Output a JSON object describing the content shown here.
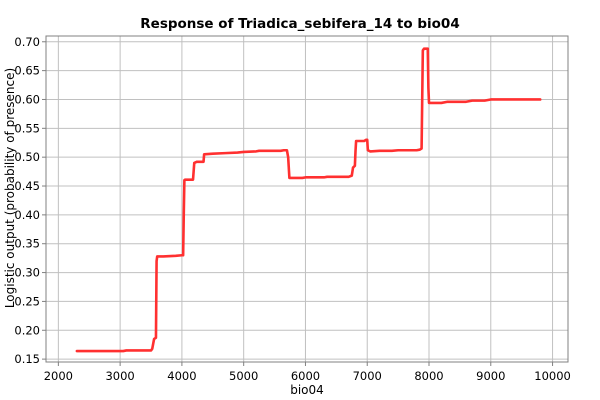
{
  "chart_data": {
    "type": "line",
    "title": "Response of Triadica_sebifera_14 to bio04",
    "xlabel": "bio04",
    "ylabel": "Logistic output (probability of presence)",
    "xlim": [
      1800,
      10250
    ],
    "ylim": [
      0.145,
      0.71
    ],
    "xticks": [
      2000,
      3000,
      4000,
      5000,
      6000,
      7000,
      8000,
      9000,
      10000
    ],
    "xtick_labels": [
      "2000",
      "3000",
      "4000",
      "5000",
      "6000",
      "7000",
      "8000",
      "9000",
      "10000"
    ],
    "yticks": [
      0.15,
      0.2,
      0.25,
      0.3,
      0.35,
      0.4,
      0.45,
      0.5,
      0.55,
      0.6,
      0.65,
      0.7
    ],
    "ytick_labels": [
      "0.15",
      "0.20",
      "0.25",
      "0.30",
      "0.35",
      "0.40",
      "0.45",
      "0.50",
      "0.55",
      "0.60",
      "0.65",
      "0.70"
    ],
    "grid": true,
    "series": [
      {
        "color": "#ff3030",
        "x": [
          2300,
          3050,
          3100,
          3500,
          3520,
          3550,
          3580,
          3590,
          3600,
          3700,
          3900,
          4000,
          4020,
          4030,
          4040,
          4050,
          4180,
          4200,
          4240,
          4350,
          4360,
          4500,
          4700,
          4900,
          5000,
          5200,
          5250,
          5400,
          5600,
          5650,
          5700,
          5720,
          5740,
          5800,
          5950,
          6000,
          6300,
          6350,
          6700,
          6750,
          6770,
          6800,
          6810,
          6820,
          6950,
          6980,
          7000,
          7010,
          7050,
          7200,
          7400,
          7500,
          7800,
          7850,
          7880,
          7890,
          7900,
          7920,
          7980,
          7990,
          8000,
          8200,
          8300,
          8600,
          8700,
          8900,
          9000,
          9800
        ],
        "y": [
          0.164,
          0.164,
          0.165,
          0.165,
          0.168,
          0.185,
          0.187,
          0.32,
          0.328,
          0.328,
          0.329,
          0.33,
          0.33,
          0.4,
          0.46,
          0.461,
          0.461,
          0.49,
          0.492,
          0.492,
          0.505,
          0.506,
          0.507,
          0.508,
          0.509,
          0.51,
          0.511,
          0.511,
          0.511,
          0.512,
          0.512,
          0.5,
          0.464,
          0.464,
          0.464,
          0.465,
          0.465,
          0.466,
          0.466,
          0.468,
          0.482,
          0.485,
          0.51,
          0.528,
          0.528,
          0.53,
          0.53,
          0.512,
          0.51,
          0.511,
          0.511,
          0.512,
          0.512,
          0.513,
          0.515,
          0.6,
          0.685,
          0.688,
          0.688,
          0.62,
          0.594,
          0.594,
          0.596,
          0.596,
          0.598,
          0.598,
          0.6,
          0.6
        ]
      }
    ]
  }
}
